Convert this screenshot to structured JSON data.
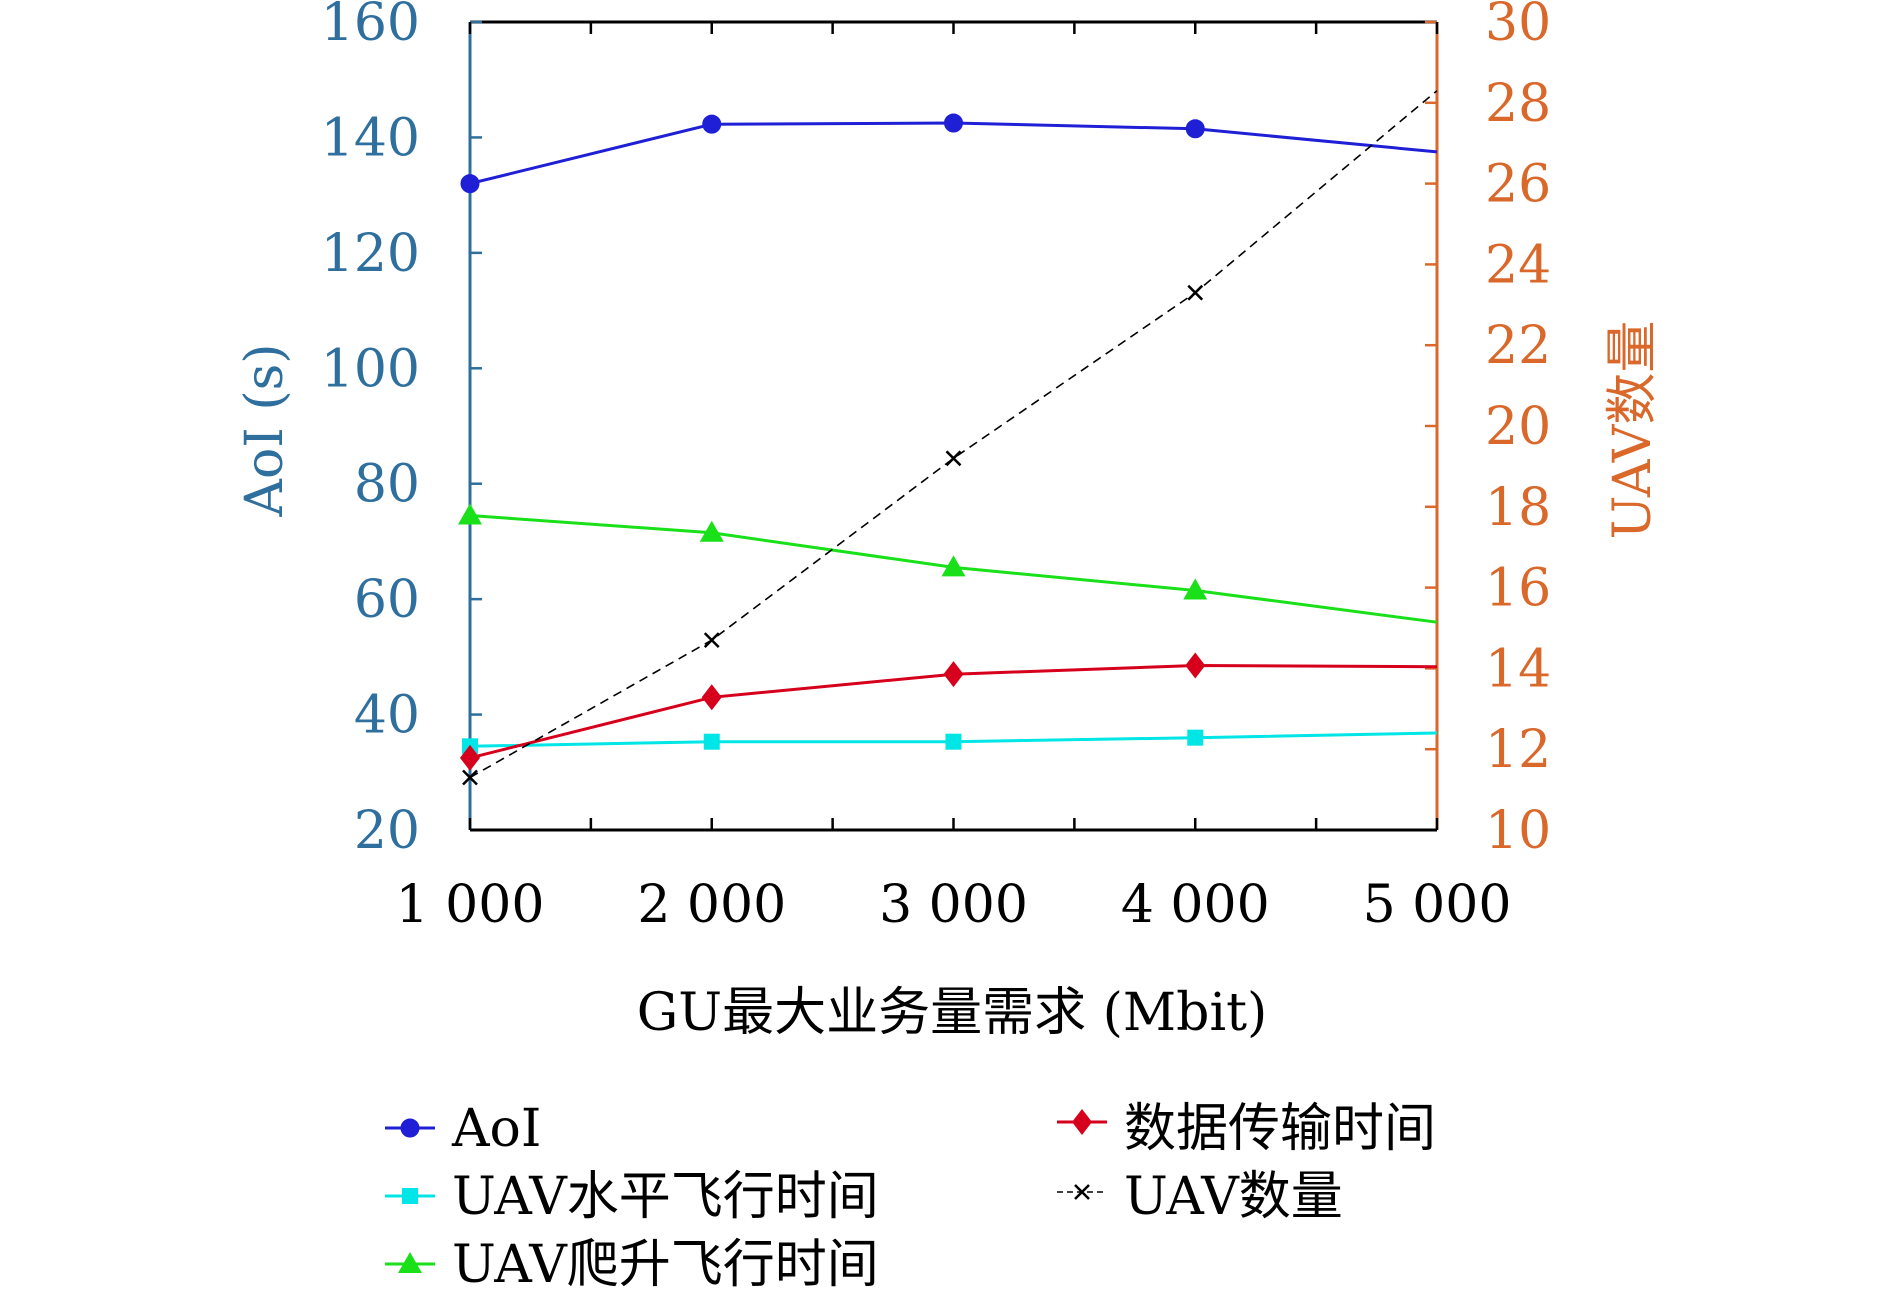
{
  "chart_data": {
    "type": "line",
    "xlabel": "GU最大业务量需求 (Mbit)",
    "ylabel_left": "AoI (s)",
    "ylabel_right": "UAV数量",
    "x": [
      1000,
      2000,
      3000,
      4000,
      5000
    ],
    "x_tick_labels": [
      "1 000",
      "2 000",
      "3 000",
      "4 000",
      "5 000"
    ],
    "xlim": [
      1000,
      5000
    ],
    "ylim_left": [
      20,
      160
    ],
    "yticks_left": [
      20,
      40,
      60,
      80,
      100,
      120,
      140,
      160
    ],
    "ylim_right": [
      10,
      30
    ],
    "yticks_right": [
      10,
      12,
      14,
      16,
      18,
      20,
      22,
      24,
      26,
      28,
      30
    ],
    "grid": false,
    "legend_position": "bottom",
    "colors": {
      "left_axis": "#2e6f9e",
      "right_axis": "#d9682a",
      "aoi": "#1f1fd6",
      "data_transmission": "#d6001c",
      "horizontal_flight": "#00e5e5",
      "climb_flight": "#19e019",
      "uav_count": "#000000"
    },
    "series": [
      {
        "name": "AoI",
        "axis": "left",
        "values": [
          132,
          142.3,
          142.5,
          141.5,
          137.5
        ],
        "marker": "circle",
        "color_key": "aoi",
        "dashed": false
      },
      {
        "name": "UAV水平飞行时间",
        "axis": "left",
        "values": [
          34.5,
          35.3,
          35.3,
          36,
          36.8
        ],
        "marker": "square",
        "color_key": "horizontal_flight",
        "dashed": false
      },
      {
        "name": "UAV爬升飞行时间",
        "axis": "left",
        "values": [
          74.5,
          71.5,
          65.5,
          61.5,
          56
        ],
        "marker": "triangle",
        "color_key": "climb_flight",
        "dashed": false
      },
      {
        "name": "数据传输时间",
        "axis": "left",
        "values": [
          32.5,
          43,
          47,
          48.5,
          48.3
        ],
        "marker": "diamond",
        "color_key": "data_transmission",
        "dashed": false
      },
      {
        "name": "UAV数量",
        "axis": "right",
        "values": [
          11.3,
          14.7,
          19.2,
          23.3,
          28.3
        ],
        "marker": "x",
        "color_key": "uav_count",
        "dashed": true
      }
    ]
  },
  "legend": [
    {
      "label": "AoI"
    },
    {
      "label": "数据传输时间"
    },
    {
      "label": "UAV水平飞行时间"
    },
    {
      "label": "UAV数量"
    },
    {
      "label": "UAV爬升飞行时间"
    }
  ]
}
